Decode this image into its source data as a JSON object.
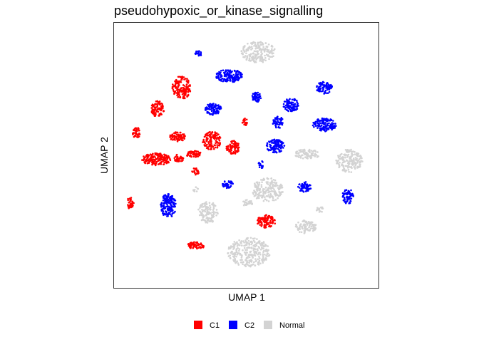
{
  "chart_data": {
    "type": "scatter",
    "title": "pseudohypoxic_or_kinase_signalling",
    "xlabel": "UMAP 1",
    "ylabel": "UMAP 2",
    "xlim": [
      0,
      100
    ],
    "ylim": [
      0,
      100
    ],
    "grid": false,
    "legend_position": "bottom",
    "series": [
      {
        "name": "C1",
        "color": "#FF0000",
        "clusters": [
          {
            "x": 25.5,
            "y": 75.5,
            "rx": 3.5,
            "ry": 4.5,
            "n": 150
          },
          {
            "x": 16.5,
            "y": 67.5,
            "rx": 2.5,
            "ry": 3.0,
            "n": 90
          },
          {
            "x": 8.5,
            "y": 58.5,
            "rx": 1.5,
            "ry": 2.0,
            "n": 40
          },
          {
            "x": 24.0,
            "y": 57.0,
            "rx": 3.0,
            "ry": 1.8,
            "n": 70
          },
          {
            "x": 37.0,
            "y": 55.5,
            "rx": 3.5,
            "ry": 3.5,
            "n": 120
          },
          {
            "x": 45.0,
            "y": 53.0,
            "rx": 2.5,
            "ry": 2.5,
            "n": 80
          },
          {
            "x": 49.5,
            "y": 62.5,
            "rx": 1.0,
            "ry": 1.5,
            "n": 20
          },
          {
            "x": 16.0,
            "y": 48.5,
            "rx": 5.5,
            "ry": 2.3,
            "n": 180
          },
          {
            "x": 24.5,
            "y": 49.0,
            "rx": 2.0,
            "ry": 1.5,
            "n": 40
          },
          {
            "x": 30.0,
            "y": 50.5,
            "rx": 3.0,
            "ry": 1.2,
            "n": 60
          },
          {
            "x": 31.0,
            "y": 44.0,
            "rx": 1.5,
            "ry": 1.3,
            "n": 25
          },
          {
            "x": 6.0,
            "y": 32.0,
            "rx": 1.5,
            "ry": 2.2,
            "n": 40
          },
          {
            "x": 57.5,
            "y": 25.0,
            "rx": 3.5,
            "ry": 2.5,
            "n": 100
          },
          {
            "x": 31.0,
            "y": 16.0,
            "rx": 3.5,
            "ry": 1.3,
            "n": 60
          }
        ]
      },
      {
        "name": "C2",
        "color": "#0000FF",
        "clusters": [
          {
            "x": 32.0,
            "y": 88.5,
            "rx": 1.3,
            "ry": 1.0,
            "n": 20
          },
          {
            "x": 43.5,
            "y": 80.0,
            "rx": 5.0,
            "ry": 2.5,
            "n": 160
          },
          {
            "x": 54.0,
            "y": 72.0,
            "rx": 1.8,
            "ry": 2.0,
            "n": 50
          },
          {
            "x": 37.5,
            "y": 67.5,
            "rx": 3.0,
            "ry": 2.3,
            "n": 90
          },
          {
            "x": 67.0,
            "y": 69.0,
            "rx": 3.0,
            "ry": 2.5,
            "n": 90
          },
          {
            "x": 62.0,
            "y": 62.5,
            "rx": 2.0,
            "ry": 2.3,
            "n": 50
          },
          {
            "x": 79.5,
            "y": 75.5,
            "rx": 3.0,
            "ry": 2.3,
            "n": 90
          },
          {
            "x": 79.5,
            "y": 61.5,
            "rx": 4.5,
            "ry": 2.5,
            "n": 130
          },
          {
            "x": 61.0,
            "y": 53.5,
            "rx": 3.5,
            "ry": 2.5,
            "n": 110
          },
          {
            "x": 55.5,
            "y": 46.5,
            "rx": 1.0,
            "ry": 1.5,
            "n": 15
          },
          {
            "x": 43.0,
            "y": 39.0,
            "rx": 2.0,
            "ry": 1.5,
            "n": 40
          },
          {
            "x": 20.5,
            "y": 31.0,
            "rx": 3.0,
            "ry": 4.5,
            "n": 160
          },
          {
            "x": 72.0,
            "y": 38.0,
            "rx": 2.5,
            "ry": 2.0,
            "n": 70
          },
          {
            "x": 88.5,
            "y": 34.5,
            "rx": 2.2,
            "ry": 2.8,
            "n": 70
          }
        ]
      },
      {
        "name": "Normal",
        "color": "#D3D3D3",
        "clusters": [
          {
            "x": 54.5,
            "y": 89.0,
            "rx": 6.5,
            "ry": 4.0,
            "n": 200
          },
          {
            "x": 73.0,
            "y": 50.5,
            "rx": 5.0,
            "ry": 1.8,
            "n": 80
          },
          {
            "x": 89.0,
            "y": 48.0,
            "rx": 5.0,
            "ry": 4.5,
            "n": 170
          },
          {
            "x": 58.0,
            "y": 37.0,
            "rx": 6.0,
            "ry": 4.5,
            "n": 200
          },
          {
            "x": 50.5,
            "y": 32.0,
            "rx": 2.0,
            "ry": 1.2,
            "n": 30
          },
          {
            "x": 35.5,
            "y": 28.5,
            "rx": 4.0,
            "ry": 4.0,
            "n": 130
          },
          {
            "x": 72.5,
            "y": 23.0,
            "rx": 4.0,
            "ry": 2.5,
            "n": 90
          },
          {
            "x": 51.0,
            "y": 13.5,
            "rx": 8.0,
            "ry": 5.5,
            "n": 280
          },
          {
            "x": 78.0,
            "y": 29.5,
            "rx": 1.5,
            "ry": 1.0,
            "n": 15
          },
          {
            "x": 31.0,
            "y": 37.0,
            "rx": 1.0,
            "ry": 1.0,
            "n": 8
          }
        ]
      }
    ]
  }
}
